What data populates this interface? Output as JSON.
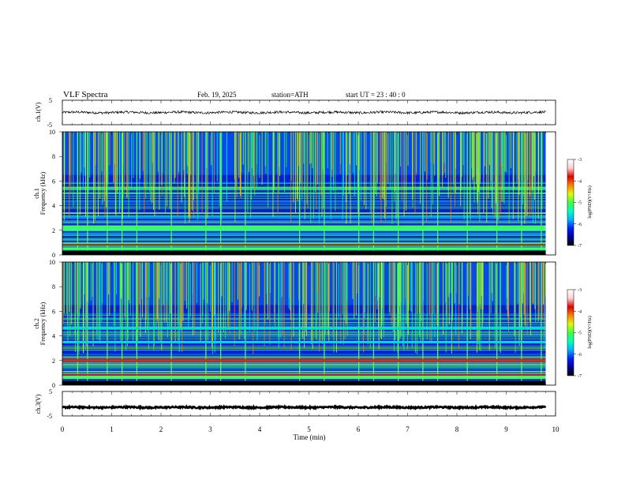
{
  "header": {
    "title": "VLF  Spectra",
    "date": "Feb. 19, 2025",
    "station": "station=ATH",
    "start_time": "start  UT  =    23 : 40 : 0"
  },
  "panels": {
    "ch1_ylabel": "ch.1(V)",
    "ch1_ticks": [
      "5",
      "-5"
    ],
    "ch2_ylabel_a": "ch.1",
    "ch2_ylabel_b": "Frequency  (kHz)",
    "ch3_ylabel_a": "ch.2",
    "ch3_ylabel_b": "Frequency  (kHz)",
    "freq_ticks": [
      "10",
      "8",
      "6",
      "4",
      "2",
      "0"
    ],
    "ch4_ylabel": "ch.3(V)",
    "ch4_ticks": [
      "5",
      "-5"
    ],
    "xlabel": "Time  (min)"
  },
  "colorbar": {
    "label": "log(PSD)(V²/Hz)",
    "ticks": [
      "-3",
      "-4",
      "-5",
      "-6",
      "-7"
    ]
  },
  "chart_data": [
    {
      "type": "line",
      "name": "ch.1 waveform",
      "ylabel": "ch.1(V)",
      "ylim": [
        -5,
        5
      ],
      "xlim": [
        0,
        10
      ],
      "x_end": 9.8,
      "baseline": 0,
      "amplitude": 0.5
    },
    {
      "type": "heatmap",
      "name": "ch.1 spectrogram",
      "xlabel": "Time (min)",
      "ylabel": "Frequency (kHz)",
      "xlim": [
        0,
        10
      ],
      "ylim": [
        0,
        10
      ],
      "color_range": [
        -7,
        -3
      ],
      "bright_bands_khz": [
        0.5,
        0.9,
        2.1,
        2.3
      ],
      "impulsive_events_min": [
        0.3,
        0.5,
        0.9,
        1.2,
        1.5,
        2.2,
        2.9,
        3.2,
        3.7,
        4.8,
        5.3,
        6.0,
        6.3,
        6.8,
        7.3,
        7.6,
        8.2,
        8.8,
        9.3,
        9.7
      ]
    },
    {
      "type": "heatmap",
      "name": "ch.2 spectrogram",
      "xlabel": "Time (min)",
      "ylabel": "Frequency (kHz)",
      "xlim": [
        0,
        10
      ],
      "ylim": [
        0,
        10
      ],
      "color_range": [
        -7,
        -3
      ],
      "bright_bands_khz": [
        0.6,
        2.0,
        3.5,
        4.6
      ],
      "impulsive_events_min": [
        0.3,
        0.5,
        0.9,
        1.2,
        1.5,
        2.2,
        2.9,
        3.2,
        3.7,
        4.8,
        5.3,
        6.0,
        6.3,
        6.8,
        7.3,
        7.6,
        8.2,
        8.8,
        9.3,
        9.7
      ]
    },
    {
      "type": "line",
      "name": "ch.3 waveform",
      "ylabel": "ch.3(V)",
      "ylim": [
        -5,
        5
      ],
      "xlim": [
        0,
        10
      ],
      "x_end": 9.8,
      "baseline": -1.5,
      "amplitude": 0.3
    }
  ],
  "x_ticks": [
    "0",
    "1",
    "2",
    "3",
    "4",
    "5",
    "6",
    "7",
    "8",
    "9",
    "10"
  ],
  "colors": {
    "colormap": [
      "#000000",
      "#0000a0",
      "#0020ff",
      "#00b4ff",
      "#00ffc0",
      "#40ff40",
      "#d8ff00",
      "#ff8000",
      "#e00000",
      "#ffd0d0",
      "#ffffff"
    ]
  }
}
